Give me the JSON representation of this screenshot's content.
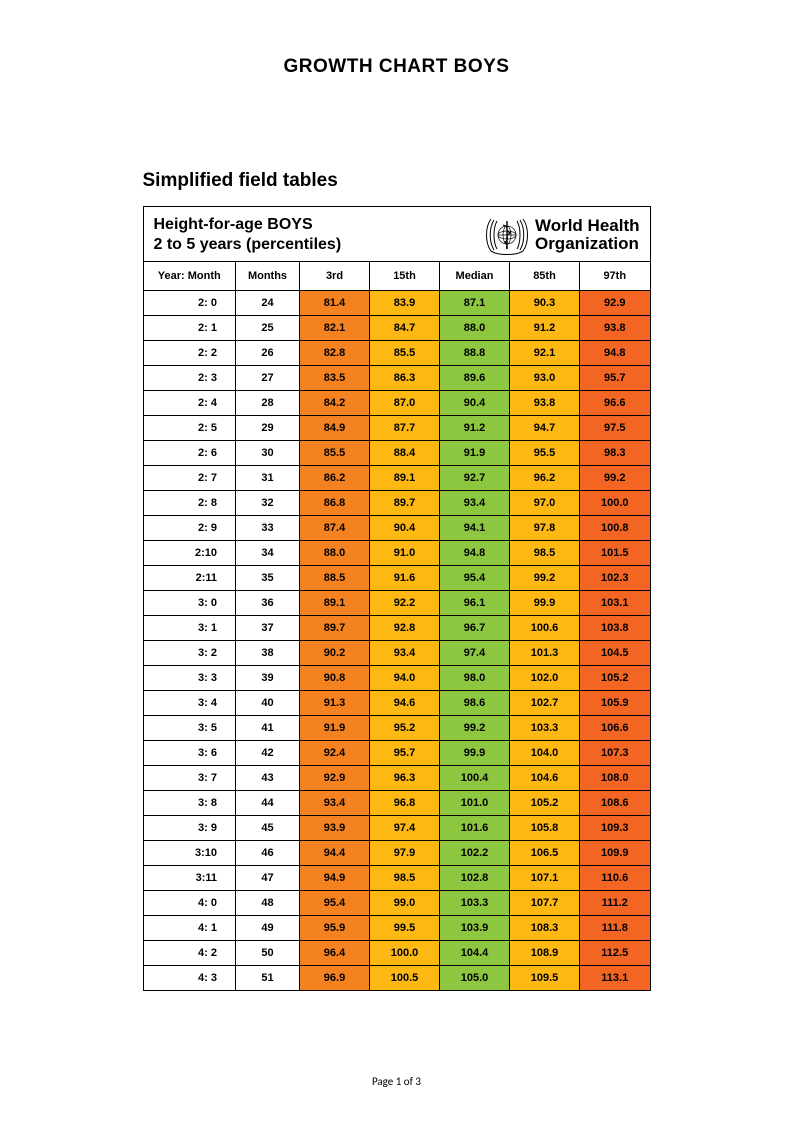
{
  "page_title": "GROWTH CHART BOYS",
  "section_title": "Simplified field tables",
  "table_header_line1": "Height-for-age  BOYS",
  "table_header_line2": "2 to 5 years (percentiles)",
  "org_line1": "World Health",
  "org_line2": "Organization",
  "footer": "Page 1 of 3",
  "columns": {
    "yearmonth": "Year: Month",
    "months": "Months",
    "p3": "3rd",
    "p15": "15th",
    "median": "Median",
    "p85": "85th",
    "p97": "97th"
  },
  "colors": {
    "p3": "#f58220",
    "p15": "#fdb813",
    "median": "#8dc63f",
    "p85": "#fdb813",
    "p97": "#f26522",
    "text": "#000000",
    "border": "#000000",
    "background": "#ffffff"
  },
  "font": {
    "family": "Arial",
    "title_size_pt": 14,
    "section_size_pt": 14,
    "cell_size_pt": 8,
    "cell_weight": "bold"
  },
  "rows": [
    {
      "ym": "2:  0",
      "mo": "24",
      "p3": "81.4",
      "p15": "83.9",
      "med": "87.1",
      "p85": "90.3",
      "p97": "92.9"
    },
    {
      "ym": "2:  1",
      "mo": "25",
      "p3": "82.1",
      "p15": "84.7",
      "med": "88.0",
      "p85": "91.2",
      "p97": "93.8"
    },
    {
      "ym": "2:  2",
      "mo": "26",
      "p3": "82.8",
      "p15": "85.5",
      "med": "88.8",
      "p85": "92.1",
      "p97": "94.8"
    },
    {
      "ym": "2:  3",
      "mo": "27",
      "p3": "83.5",
      "p15": "86.3",
      "med": "89.6",
      "p85": "93.0",
      "p97": "95.7"
    },
    {
      "ym": "2:  4",
      "mo": "28",
      "p3": "84.2",
      "p15": "87.0",
      "med": "90.4",
      "p85": "93.8",
      "p97": "96.6"
    },
    {
      "ym": "2:  5",
      "mo": "29",
      "p3": "84.9",
      "p15": "87.7",
      "med": "91.2",
      "p85": "94.7",
      "p97": "97.5"
    },
    {
      "ym": "2:  6",
      "mo": "30",
      "p3": "85.5",
      "p15": "88.4",
      "med": "91.9",
      "p85": "95.5",
      "p97": "98.3"
    },
    {
      "ym": "2:  7",
      "mo": "31",
      "p3": "86.2",
      "p15": "89.1",
      "med": "92.7",
      "p85": "96.2",
      "p97": "99.2"
    },
    {
      "ym": "2:  8",
      "mo": "32",
      "p3": "86.8",
      "p15": "89.7",
      "med": "93.4",
      "p85": "97.0",
      "p97": "100.0"
    },
    {
      "ym": "2:  9",
      "mo": "33",
      "p3": "87.4",
      "p15": "90.4",
      "med": "94.1",
      "p85": "97.8",
      "p97": "100.8"
    },
    {
      "ym": "2:10",
      "mo": "34",
      "p3": "88.0",
      "p15": "91.0",
      "med": "94.8",
      "p85": "98.5",
      "p97": "101.5"
    },
    {
      "ym": "2:11",
      "mo": "35",
      "p3": "88.5",
      "p15": "91.6",
      "med": "95.4",
      "p85": "99.2",
      "p97": "102.3"
    },
    {
      "ym": "3:  0",
      "mo": "36",
      "p3": "89.1",
      "p15": "92.2",
      "med": "96.1",
      "p85": "99.9",
      "p97": "103.1"
    },
    {
      "ym": "3:  1",
      "mo": "37",
      "p3": "89.7",
      "p15": "92.8",
      "med": "96.7",
      "p85": "100.6",
      "p97": "103.8"
    },
    {
      "ym": "3:  2",
      "mo": "38",
      "p3": "90.2",
      "p15": "93.4",
      "med": "97.4",
      "p85": "101.3",
      "p97": "104.5"
    },
    {
      "ym": "3:  3",
      "mo": "39",
      "p3": "90.8",
      "p15": "94.0",
      "med": "98.0",
      "p85": "102.0",
      "p97": "105.2"
    },
    {
      "ym": "3:  4",
      "mo": "40",
      "p3": "91.3",
      "p15": "94.6",
      "med": "98.6",
      "p85": "102.7",
      "p97": "105.9"
    },
    {
      "ym": "3:  5",
      "mo": "41",
      "p3": "91.9",
      "p15": "95.2",
      "med": "99.2",
      "p85": "103.3",
      "p97": "106.6"
    },
    {
      "ym": "3:  6",
      "mo": "42",
      "p3": "92.4",
      "p15": "95.7",
      "med": "99.9",
      "p85": "104.0",
      "p97": "107.3"
    },
    {
      "ym": "3:  7",
      "mo": "43",
      "p3": "92.9",
      "p15": "96.3",
      "med": "100.4",
      "p85": "104.6",
      "p97": "108.0"
    },
    {
      "ym": "3:  8",
      "mo": "44",
      "p3": "93.4",
      "p15": "96.8",
      "med": "101.0",
      "p85": "105.2",
      "p97": "108.6"
    },
    {
      "ym": "3:  9",
      "mo": "45",
      "p3": "93.9",
      "p15": "97.4",
      "med": "101.6",
      "p85": "105.8",
      "p97": "109.3"
    },
    {
      "ym": "3:10",
      "mo": "46",
      "p3": "94.4",
      "p15": "97.9",
      "med": "102.2",
      "p85": "106.5",
      "p97": "109.9"
    },
    {
      "ym": "3:11",
      "mo": "47",
      "p3": "94.9",
      "p15": "98.5",
      "med": "102.8",
      "p85": "107.1",
      "p97": "110.6"
    },
    {
      "ym": "4:  0",
      "mo": "48",
      "p3": "95.4",
      "p15": "99.0",
      "med": "103.3",
      "p85": "107.7",
      "p97": "111.2"
    },
    {
      "ym": "4:  1",
      "mo": "49",
      "p3": "95.9",
      "p15": "99.5",
      "med": "103.9",
      "p85": "108.3",
      "p97": "111.8"
    },
    {
      "ym": "4:  2",
      "mo": "50",
      "p3": "96.4",
      "p15": "100.0",
      "med": "104.4",
      "p85": "108.9",
      "p97": "112.5"
    },
    {
      "ym": "4:  3",
      "mo": "51",
      "p3": "96.9",
      "p15": "100.5",
      "med": "105.0",
      "p85": "109.5",
      "p97": "113.1"
    }
  ]
}
